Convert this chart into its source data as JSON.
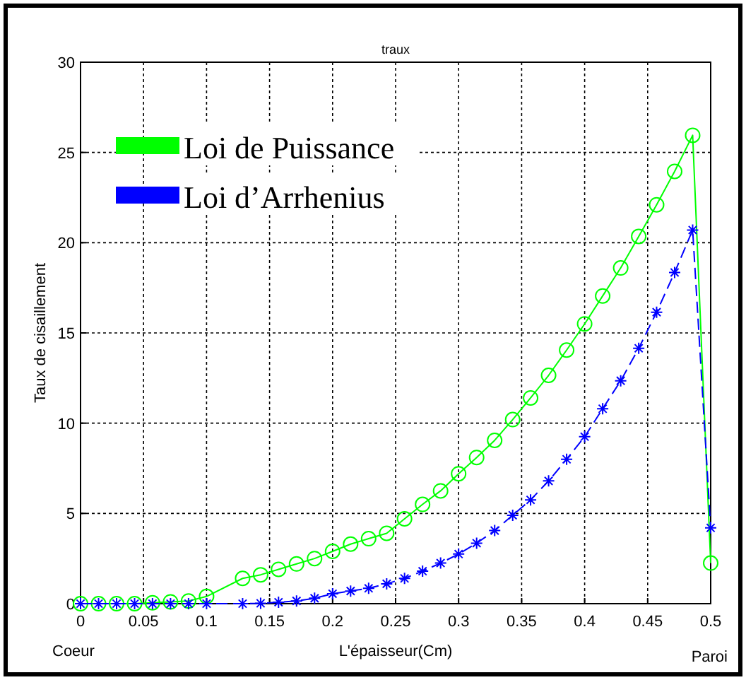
{
  "chart_data": {
    "type": "line",
    "title": "traux",
    "xlabel": "L'épaisseur(Cm)",
    "ylabel": "Taux de cisaillement",
    "annotations": [
      "Coeur",
      "Paroi"
    ],
    "xlim": [
      0,
      0.5
    ],
    "ylim": [
      0,
      30
    ],
    "xticks": [
      0,
      0.05,
      0.1,
      0.15,
      0.2,
      0.25,
      0.3,
      0.35,
      0.4,
      0.45,
      0.5
    ],
    "yticks": [
      0,
      5,
      10,
      15,
      20,
      25,
      30
    ],
    "grid": true,
    "legend": "top left",
    "series": [
      {
        "name": "Loi de Puissance",
        "color": "#00ff00",
        "marker": "circle",
        "line_style": "solid",
        "x": [
          0,
          0.0143,
          0.0286,
          0.0429,
          0.0571,
          0.0714,
          0.0857,
          0.1,
          0.1286,
          0.1429,
          0.1571,
          0.1714,
          0.1857,
          0.2,
          0.2143,
          0.2286,
          0.2429,
          0.2571,
          0.2714,
          0.2857,
          0.3,
          0.3143,
          0.3286,
          0.3429,
          0.3571,
          0.3714,
          0.3857,
          0.4,
          0.4143,
          0.4286,
          0.4429,
          0.4571,
          0.4714,
          0.4857,
          0.5
        ],
        "values": [
          0,
          0,
          0,
          0,
          0.05,
          0.1,
          0.15,
          0.4,
          1.4,
          1.6,
          1.9,
          2.2,
          2.5,
          2.9,
          3.3,
          3.6,
          3.9,
          4.7,
          5.5,
          6.25,
          7.2,
          8.1,
          9.05,
          10.2,
          11.4,
          12.65,
          14.05,
          15.5,
          17.05,
          18.6,
          20.35,
          22.1,
          23.95,
          25.95,
          2.25
        ]
      },
      {
        "name": "Loi d’Arrhenius",
        "color": "#0000ff",
        "marker": "cross",
        "line_style": "dashed",
        "x": [
          0,
          0.0143,
          0.0286,
          0.0429,
          0.0571,
          0.0714,
          0.0857,
          0.1,
          0.1286,
          0.1429,
          0.1571,
          0.1714,
          0.1857,
          0.2,
          0.2143,
          0.2286,
          0.2429,
          0.2571,
          0.2714,
          0.2857,
          0.3,
          0.3143,
          0.3286,
          0.3429,
          0.3571,
          0.3714,
          0.3857,
          0.4,
          0.4143,
          0.4286,
          0.4429,
          0.4571,
          0.4714,
          0.4857,
          0.5
        ],
        "values": [
          0,
          0,
          0,
          0,
          0,
          0,
          0,
          0,
          0,
          0.02,
          0.08,
          0.15,
          0.3,
          0.55,
          0.7,
          0.85,
          1.1,
          1.4,
          1.8,
          2.25,
          2.75,
          3.35,
          4.05,
          4.9,
          5.75,
          6.8,
          8.0,
          9.25,
          10.8,
          12.35,
          14.15,
          16.15,
          18.35,
          20.7,
          4.2
        ]
      }
    ]
  }
}
